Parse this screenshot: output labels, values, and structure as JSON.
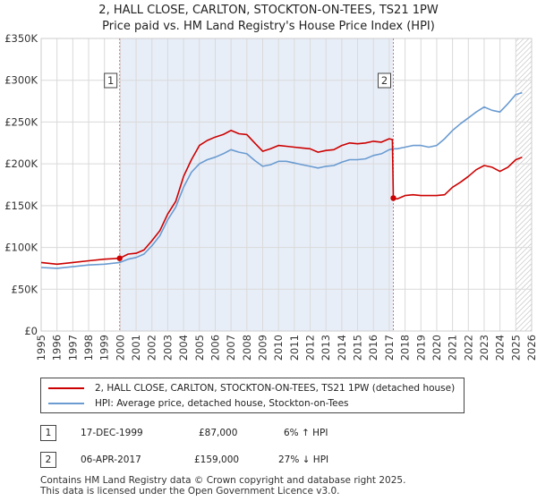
{
  "title_line1": "2, HALL CLOSE, CARLTON, STOCKTON-ON-TEES, TS21 1PW",
  "title_line2": "Price paid vs. HM Land Registry's House Price Index (HPI)",
  "colors": {
    "property": "#cc0000",
    "hpi": "#6a9bd1",
    "shade": "#e8eef8",
    "grid": "#d9d9d9",
    "vline": "#e07070"
  },
  "legend": {
    "property": "2, HALL CLOSE, CARLTON, STOCKTON-ON-TEES, TS21 1PW (detached house)",
    "hpi": "HPI: Average price, detached house, Stockton-on-Tees"
  },
  "transactions": [
    {
      "num": "1",
      "date": "17-DEC-1999",
      "price": "£87,000",
      "hpi_diff": "6% ↑ HPI"
    },
    {
      "num": "2",
      "date": "06-APR-2017",
      "price": "£159,000",
      "hpi_diff": "27% ↓ HPI"
    }
  ],
  "footer": {
    "line1": "Contains HM Land Registry data © Crown copyright and database right 2025.",
    "line2": "This data is licensed under the Open Government Licence v3.0."
  },
  "chart_data": {
    "type": "line",
    "title": "2, HALL CLOSE, CARLTON, STOCKTON-ON-TEES, TS21 1PW",
    "subtitle": "Price paid vs. HM Land Registry's House Price Index (HPI)",
    "xlabel": "",
    "ylabel": "",
    "xlim": [
      1995,
      2026
    ],
    "ylim": [
      0,
      350000
    ],
    "y_ticks": [
      0,
      50000,
      100000,
      150000,
      200000,
      250000,
      300000,
      350000
    ],
    "y_tick_labels": [
      "£0",
      "£50K",
      "£100K",
      "£150K",
      "£200K",
      "£250K",
      "£300K",
      "£350K"
    ],
    "x_ticks": [
      "1995",
      "1996",
      "1997",
      "1998",
      "1999",
      "2000",
      "2001",
      "2002",
      "2003",
      "2004",
      "2005",
      "2006",
      "2007",
      "2008",
      "2009",
      "2010",
      "2011",
      "2012",
      "2013",
      "2014",
      "2015",
      "2016",
      "2017",
      "2018",
      "2019",
      "2020",
      "2021",
      "2022",
      "2023",
      "2024",
      "2025",
      "2026"
    ],
    "shaded_region": [
      1999.96,
      2017.26
    ],
    "forecast_start": 2025.0,
    "markers": [
      {
        "label": "1",
        "x": 1999.96,
        "y": 87000
      },
      {
        "label": "2",
        "x": 2017.26,
        "y": 159000
      }
    ],
    "series": [
      {
        "name": "2, HALL CLOSE, CARLTON, STOCKTON-ON-TEES, TS21 1PW (detached house)",
        "color": "#cc0000",
        "x": [
          1995.0,
          1996.0,
          1997.0,
          1998.0,
          1999.0,
          1999.96,
          2000.5,
          2001.0,
          2001.5,
          2002.0,
          2002.5,
          2003.0,
          2003.5,
          2004.0,
          2004.5,
          2005.0,
          2005.5,
          2006.0,
          2006.5,
          2007.0,
          2007.5,
          2008.0,
          2008.5,
          2009.0,
          2009.5,
          2010.0,
          2010.5,
          2011.0,
          2011.5,
          2012.0,
          2012.5,
          2013.0,
          2013.5,
          2014.0,
          2014.5,
          2015.0,
          2015.5,
          2016.0,
          2016.5,
          2017.0,
          2017.2,
          2017.26,
          2017.5,
          2018.0,
          2018.5,
          2019.0,
          2019.5,
          2020.0,
          2020.5,
          2021.0,
          2021.5,
          2022.0,
          2022.5,
          2023.0,
          2023.5,
          2024.0,
          2024.5,
          2025.0,
          2025.4
        ],
        "y": [
          82000,
          80000,
          82000,
          84000,
          86000,
          87000,
          92000,
          93000,
          97000,
          108000,
          120000,
          140000,
          155000,
          185000,
          205000,
          222000,
          228000,
          232000,
          235000,
          240000,
          236000,
          235000,
          225000,
          215000,
          218000,
          222000,
          221000,
          220000,
          219000,
          218000,
          214000,
          216000,
          217000,
          222000,
          225000,
          224000,
          225000,
          227000,
          226000,
          230000,
          229000,
          159000,
          158000,
          162000,
          163000,
          162000,
          162000,
          162000,
          163000,
          172000,
          178000,
          185000,
          193000,
          198000,
          196000,
          191000,
          196000,
          205000,
          208000
        ]
      },
      {
        "name": "HPI: Average price, detached house, Stockton-on-Tees",
        "color": "#6a9bd1",
        "x": [
          1995.0,
          1996.0,
          1997.0,
          1998.0,
          1999.0,
          1999.96,
          2000.5,
          2001.0,
          2001.5,
          2002.0,
          2002.5,
          2003.0,
          2003.5,
          2004.0,
          2004.5,
          2005.0,
          2005.5,
          2006.0,
          2006.5,
          2007.0,
          2007.5,
          2008.0,
          2008.5,
          2009.0,
          2009.5,
          2010.0,
          2010.5,
          2011.0,
          2011.5,
          2012.0,
          2012.5,
          2013.0,
          2013.5,
          2014.0,
          2014.5,
          2015.0,
          2015.5,
          2016.0,
          2016.5,
          2017.0,
          2017.26,
          2017.5,
          2018.0,
          2018.5,
          2019.0,
          2019.5,
          2020.0,
          2020.5,
          2021.0,
          2021.5,
          2022.0,
          2022.5,
          2023.0,
          2023.5,
          2024.0,
          2024.5,
          2025.0,
          2025.4
        ],
        "y": [
          76000,
          75000,
          77000,
          79000,
          80000,
          82000,
          86000,
          88000,
          92000,
          102000,
          114000,
          133000,
          148000,
          172000,
          190000,
          200000,
          205000,
          208000,
          212000,
          217000,
          214000,
          212000,
          204000,
          197000,
          199000,
          203000,
          203000,
          201000,
          199000,
          197000,
          195000,
          197000,
          198000,
          202000,
          205000,
          205000,
          206000,
          210000,
          212000,
          217000,
          218000,
          218000,
          220000,
          222000,
          222000,
          220000,
          222000,
          230000,
          240000,
          248000,
          255000,
          262000,
          268000,
          264000,
          262000,
          272000,
          283000,
          285000
        ]
      }
    ]
  }
}
